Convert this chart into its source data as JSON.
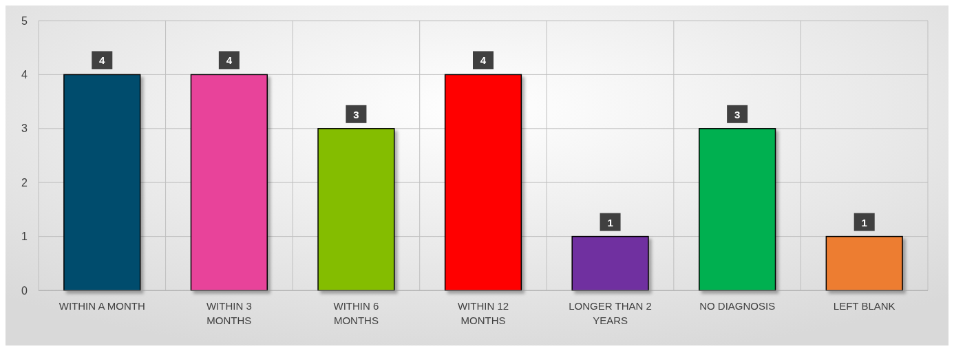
{
  "chart_data": {
    "type": "bar",
    "categories": [
      "WITHIN A MONTH",
      "WITHIN 3 MONTHS",
      "WITHIN 6 MONTHS",
      "WITHIN 12 MONTHS",
      "LONGER THAN 2 YEARS",
      "NO DIAGNOSIS",
      "LEFT BLANK"
    ],
    "values": [
      4,
      4,
      3,
      4,
      1,
      3,
      1
    ],
    "colors": [
      "#004c6d",
      "#e8439a",
      "#84bd00",
      "#ff0000",
      "#7030a0",
      "#00b050",
      "#ed7d31"
    ],
    "ylim": [
      0,
      5
    ],
    "yticks": [
      0,
      1,
      2,
      3,
      4,
      5
    ],
    "grid": true,
    "data_labels": true
  }
}
